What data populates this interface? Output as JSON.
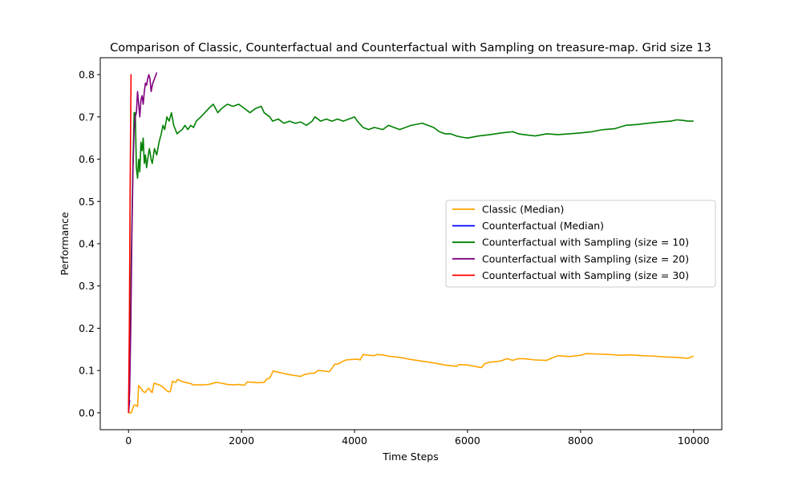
{
  "chart_data": {
    "type": "line",
    "title": "Comparison of Classic, Counterfactual and Counterfactual with Sampling on treasure-map. Grid size 13",
    "xlabel": "Time Steps",
    "ylabel": "Performance",
    "xlim": [
      -500,
      10500
    ],
    "ylim": [
      -0.04,
      0.84
    ],
    "xticks": [
      0,
      2000,
      4000,
      6000,
      8000,
      10000
    ],
    "xtick_labels": [
      "0",
      "2000",
      "4000",
      "6000",
      "8000",
      "10000"
    ],
    "yticks": [
      0.0,
      0.1,
      0.2,
      0.3,
      0.4,
      0.5,
      0.6,
      0.7,
      0.8
    ],
    "ytick_labels": [
      "0.0",
      "0.1",
      "0.2",
      "0.3",
      "0.4",
      "0.5",
      "0.6",
      "0.7",
      "0.8"
    ],
    "grid": false,
    "legend_position": "center-right",
    "series": [
      {
        "name": "Classic (Median)",
        "color": "#ffa500",
        "points": [
          [
            0,
            0.0
          ],
          [
            50,
            0.0
          ],
          [
            80,
            0.012
          ],
          [
            100,
            0.018
          ],
          [
            130,
            0.018
          ],
          [
            160,
            0.015
          ],
          [
            180,
            0.065
          ],
          [
            220,
            0.058
          ],
          [
            260,
            0.05
          ],
          [
            300,
            0.048
          ],
          [
            330,
            0.055
          ],
          [
            360,
            0.058
          ],
          [
            400,
            0.05
          ],
          [
            420,
            0.048
          ],
          [
            450,
            0.07
          ],
          [
            500,
            0.068
          ],
          [
            560,
            0.065
          ],
          [
            620,
            0.06
          ],
          [
            650,
            0.055
          ],
          [
            700,
            0.05
          ],
          [
            740,
            0.05
          ],
          [
            780,
            0.075
          ],
          [
            820,
            0.072
          ],
          [
            840,
            0.073
          ],
          [
            870,
            0.079
          ],
          [
            900,
            0.077
          ],
          [
            950,
            0.074
          ],
          [
            1000,
            0.072
          ],
          [
            1100,
            0.069
          ],
          [
            1150,
            0.066
          ],
          [
            1250,
            0.066
          ],
          [
            1350,
            0.066
          ],
          [
            1450,
            0.068
          ],
          [
            1550,
            0.072
          ],
          [
            1650,
            0.07
          ],
          [
            1750,
            0.067
          ],
          [
            1850,
            0.066
          ],
          [
            1950,
            0.067
          ],
          [
            2050,
            0.065
          ],
          [
            2100,
            0.073
          ],
          [
            2200,
            0.072
          ],
          [
            2300,
            0.071
          ],
          [
            2400,
            0.072
          ],
          [
            2450,
            0.08
          ],
          [
            2500,
            0.082
          ],
          [
            2560,
            0.099
          ],
          [
            2650,
            0.096
          ],
          [
            2750,
            0.093
          ],
          [
            2850,
            0.09
          ],
          [
            2950,
            0.088
          ],
          [
            3050,
            0.086
          ],
          [
            3100,
            0.09
          ],
          [
            3200,
            0.093
          ],
          [
            3300,
            0.094
          ],
          [
            3350,
            0.1
          ],
          [
            3450,
            0.099
          ],
          [
            3550,
            0.097
          ],
          [
            3600,
            0.105
          ],
          [
            3650,
            0.115
          ],
          [
            3700,
            0.115
          ],
          [
            3800,
            0.122
          ],
          [
            3850,
            0.125
          ],
          [
            3950,
            0.126
          ],
          [
            4050,
            0.127
          ],
          [
            4100,
            0.125
          ],
          [
            4150,
            0.138
          ],
          [
            4250,
            0.136
          ],
          [
            4350,
            0.135
          ],
          [
            4400,
            0.138
          ],
          [
            4500,
            0.137
          ],
          [
            4600,
            0.134
          ],
          [
            4800,
            0.131
          ],
          [
            5000,
            0.126
          ],
          [
            5200,
            0.122
          ],
          [
            5400,
            0.118
          ],
          [
            5600,
            0.113
          ],
          [
            5800,
            0.11
          ],
          [
            5850,
            0.114
          ],
          [
            6000,
            0.113
          ],
          [
            6200,
            0.108
          ],
          [
            6250,
            0.107
          ],
          [
            6300,
            0.116
          ],
          [
            6400,
            0.12
          ],
          [
            6500,
            0.121
          ],
          [
            6600,
            0.123
          ],
          [
            6700,
            0.128
          ],
          [
            6800,
            0.124
          ],
          [
            6900,
            0.128
          ],
          [
            7000,
            0.128
          ],
          [
            7200,
            0.125
          ],
          [
            7400,
            0.124
          ],
          [
            7500,
            0.13
          ],
          [
            7600,
            0.135
          ],
          [
            7800,
            0.133
          ],
          [
            8000,
            0.136
          ],
          [
            8100,
            0.14
          ],
          [
            8300,
            0.139
          ],
          [
            8500,
            0.138
          ],
          [
            8700,
            0.136
          ],
          [
            8900,
            0.137
          ],
          [
            9100,
            0.135
          ],
          [
            9300,
            0.134
          ],
          [
            9500,
            0.132
          ],
          [
            9700,
            0.131
          ],
          [
            9900,
            0.129
          ],
          [
            10000,
            0.134
          ]
        ]
      },
      {
        "name": "Counterfactual (Median)",
        "color": "#0000ff",
        "points": [
          [
            0,
            0.0
          ],
          [
            20,
            0.03
          ]
        ]
      },
      {
        "name": "Counterfactual with Sampling (size = 10)",
        "color": "#008000",
        "points": [
          [
            0,
            0.0
          ],
          [
            30,
            0.2
          ],
          [
            60,
            0.45
          ],
          [
            80,
            0.6
          ],
          [
            100,
            0.71
          ],
          [
            120,
            0.71
          ],
          [
            140,
            0.58
          ],
          [
            160,
            0.555
          ],
          [
            180,
            0.6
          ],
          [
            200,
            0.57
          ],
          [
            220,
            0.64
          ],
          [
            240,
            0.62
          ],
          [
            260,
            0.65
          ],
          [
            280,
            0.59
          ],
          [
            300,
            0.61
          ],
          [
            320,
            0.58
          ],
          [
            340,
            0.6
          ],
          [
            370,
            0.625
          ],
          [
            400,
            0.6
          ],
          [
            420,
            0.59
          ],
          [
            460,
            0.625
          ],
          [
            500,
            0.61
          ],
          [
            540,
            0.64
          ],
          [
            580,
            0.66
          ],
          [
            610,
            0.68
          ],
          [
            640,
            0.67
          ],
          [
            680,
            0.7
          ],
          [
            720,
            0.69
          ],
          [
            760,
            0.71
          ],
          [
            800,
            0.68
          ],
          [
            830,
            0.67
          ],
          [
            860,
            0.66
          ],
          [
            900,
            0.665
          ],
          [
            950,
            0.67
          ],
          [
            1000,
            0.68
          ],
          [
            1050,
            0.67
          ],
          [
            1100,
            0.68
          ],
          [
            1150,
            0.675
          ],
          [
            1200,
            0.69
          ],
          [
            1280,
            0.7
          ],
          [
            1350,
            0.71
          ],
          [
            1420,
            0.72
          ],
          [
            1500,
            0.73
          ],
          [
            1540,
            0.72
          ],
          [
            1580,
            0.71
          ],
          [
            1650,
            0.72
          ],
          [
            1750,
            0.73
          ],
          [
            1850,
            0.725
          ],
          [
            1950,
            0.73
          ],
          [
            2050,
            0.72
          ],
          [
            2150,
            0.71
          ],
          [
            2250,
            0.72
          ],
          [
            2350,
            0.725
          ],
          [
            2400,
            0.71
          ],
          [
            2500,
            0.7
          ],
          [
            2550,
            0.69
          ],
          [
            2650,
            0.695
          ],
          [
            2750,
            0.685
          ],
          [
            2850,
            0.69
          ],
          [
            2950,
            0.685
          ],
          [
            3050,
            0.688
          ],
          [
            3150,
            0.68
          ],
          [
            3250,
            0.69
          ],
          [
            3300,
            0.7
          ],
          [
            3400,
            0.69
          ],
          [
            3500,
            0.695
          ],
          [
            3600,
            0.69
          ],
          [
            3700,
            0.695
          ],
          [
            3800,
            0.69
          ],
          [
            3900,
            0.695
          ],
          [
            4000,
            0.7
          ],
          [
            4050,
            0.69
          ],
          [
            4150,
            0.675
          ],
          [
            4250,
            0.67
          ],
          [
            4350,
            0.675
          ],
          [
            4500,
            0.67
          ],
          [
            4600,
            0.68
          ],
          [
            4700,
            0.675
          ],
          [
            4800,
            0.67
          ],
          [
            5000,
            0.68
          ],
          [
            5200,
            0.685
          ],
          [
            5300,
            0.68
          ],
          [
            5400,
            0.675
          ],
          [
            5500,
            0.665
          ],
          [
            5600,
            0.66
          ],
          [
            5700,
            0.66
          ],
          [
            5800,
            0.655
          ],
          [
            5900,
            0.652
          ],
          [
            6000,
            0.65
          ],
          [
            6200,
            0.655
          ],
          [
            6400,
            0.658
          ],
          [
            6600,
            0.662
          ],
          [
            6800,
            0.665
          ],
          [
            6900,
            0.66
          ],
          [
            7000,
            0.658
          ],
          [
            7200,
            0.655
          ],
          [
            7400,
            0.66
          ],
          [
            7600,
            0.658
          ],
          [
            7800,
            0.66
          ],
          [
            8000,
            0.662
          ],
          [
            8200,
            0.665
          ],
          [
            8400,
            0.67
          ],
          [
            8600,
            0.672
          ],
          [
            8800,
            0.68
          ],
          [
            9000,
            0.682
          ],
          [
            9200,
            0.685
          ],
          [
            9400,
            0.688
          ],
          [
            9600,
            0.69
          ],
          [
            9700,
            0.693
          ],
          [
            9800,
            0.692
          ],
          [
            9900,
            0.69
          ],
          [
            10000,
            0.69
          ]
        ]
      },
      {
        "name": "Counterfactual with Sampling (size = 20)",
        "color": "#800080",
        "points": [
          [
            0,
            0.0
          ],
          [
            20,
            0.05
          ],
          [
            40,
            0.2
          ],
          [
            60,
            0.42
          ],
          [
            80,
            0.58
          ],
          [
            100,
            0.67
          ],
          [
            120,
            0.7
          ],
          [
            140,
            0.71
          ],
          [
            160,
            0.76
          ],
          [
            180,
            0.73
          ],
          [
            200,
            0.7
          ],
          [
            220,
            0.74
          ],
          [
            240,
            0.75
          ],
          [
            260,
            0.73
          ],
          [
            280,
            0.76
          ],
          [
            300,
            0.78
          ],
          [
            320,
            0.775
          ],
          [
            340,
            0.79
          ],
          [
            360,
            0.8
          ],
          [
            380,
            0.79
          ],
          [
            400,
            0.76
          ],
          [
            430,
            0.78
          ],
          [
            460,
            0.79
          ],
          [
            500,
            0.805
          ]
        ]
      },
      {
        "name": "Counterfactual with Sampling (size = 30)",
        "color": "#ff0000",
        "points": [
          [
            0,
            0.0
          ],
          [
            15,
            0.2
          ],
          [
            30,
            0.55
          ],
          [
            45,
            0.8
          ],
          [
            50,
            0.8
          ]
        ]
      }
    ]
  }
}
